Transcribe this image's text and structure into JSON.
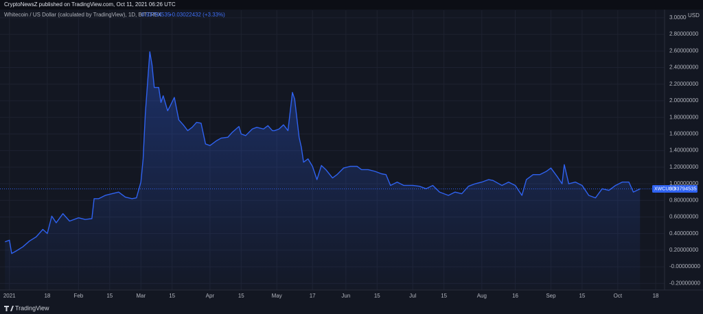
{
  "published": "CryptoNewsZ published on TradingView.com, Oct 11, 2021 06:26 UTC",
  "footer": "TradingView",
  "chart_data": {
    "type": "area",
    "title": "Whitecoin / US Dollar (calculated by TradingView), 1D, BITTREX",
    "change": "+0.03022432 (+3.33%)",
    "currency": "USD",
    "symbol": "XWCUSD",
    "x": [
      "2020-12-30",
      "2021-01-01",
      "2021-01-02",
      "2021-01-04",
      "2021-01-07",
      "2021-01-10",
      "2021-01-13",
      "2021-01-16",
      "2021-01-18",
      "2021-01-20",
      "2021-01-22",
      "2021-01-25",
      "2021-01-28",
      "2021-02-01",
      "2021-02-04",
      "2021-02-07",
      "2021-02-08",
      "2021-02-10",
      "2021-02-13",
      "2021-02-16",
      "2021-02-19",
      "2021-02-22",
      "2021-02-25",
      "2021-02-27",
      "2021-03-01",
      "2021-03-02",
      "2021-03-03",
      "2021-03-05",
      "2021-03-06",
      "2021-03-07",
      "2021-03-09",
      "2021-03-10",
      "2021-03-11",
      "2021-03-13",
      "2021-03-14",
      "2021-03-16",
      "2021-03-18",
      "2021-03-20",
      "2021-03-22",
      "2021-03-24",
      "2021-03-26",
      "2021-03-28",
      "2021-03-30",
      "2021-04-01",
      "2021-04-04",
      "2021-04-06",
      "2021-04-09",
      "2021-04-11",
      "2021-04-14",
      "2021-04-15",
      "2021-04-17",
      "2021-04-20",
      "2021-04-22",
      "2021-04-25",
      "2021-04-27",
      "2021-04-29",
      "2021-04-30",
      "2021-05-02",
      "2021-05-04",
      "2021-05-06",
      "2021-05-08",
      "2021-05-09",
      "2021-05-11",
      "2021-05-12",
      "2021-05-13",
      "2021-05-15",
      "2021-05-17",
      "2021-05-19",
      "2021-05-21",
      "2021-05-23",
      "2021-05-26",
      "2021-05-28",
      "2021-05-31",
      "2021-06-03",
      "2021-06-06",
      "2021-06-08",
      "2021-06-11",
      "2021-06-14",
      "2021-06-17",
      "2021-06-19",
      "2021-06-21",
      "2021-06-24",
      "2021-06-27",
      "2021-07-01",
      "2021-07-04",
      "2021-07-07",
      "2021-07-10",
      "2021-07-13",
      "2021-07-17",
      "2021-07-20",
      "2021-07-23",
      "2021-07-26",
      "2021-07-29",
      "2021-08-01",
      "2021-08-04",
      "2021-08-06",
      "2021-08-10",
      "2021-08-13",
      "2021-08-16",
      "2021-08-19",
      "2021-08-21",
      "2021-08-24",
      "2021-08-27",
      "2021-08-30",
      "2021-09-01",
      "2021-09-04",
      "2021-09-06",
      "2021-09-07",
      "2021-09-09",
      "2021-09-12",
      "2021-09-15",
      "2021-09-18",
      "2021-09-21",
      "2021-09-24",
      "2021-09-27",
      "2021-09-30",
      "2021-10-03",
      "2021-10-06",
      "2021-10-08",
      "2021-10-11"
    ],
    "series": [
      {
        "name": "XWCUSD",
        "color": "#2f62f0",
        "values": [
          0.3,
          0.32,
          0.16,
          0.19,
          0.24,
          0.31,
          0.36,
          0.45,
          0.4,
          0.61,
          0.53,
          0.64,
          0.55,
          0.59,
          0.57,
          0.58,
          0.82,
          0.82,
          0.86,
          0.88,
          0.9,
          0.84,
          0.82,
          0.83,
          1.02,
          1.3,
          1.85,
          2.59,
          2.43,
          2.16,
          2.16,
          1.98,
          2.06,
          1.88,
          1.93,
          2.04,
          1.77,
          1.71,
          1.64,
          1.68,
          1.74,
          1.73,
          1.48,
          1.46,
          1.52,
          1.55,
          1.56,
          1.62,
          1.69,
          1.6,
          1.58,
          1.66,
          1.68,
          1.66,
          1.7,
          1.64,
          1.64,
          1.66,
          1.71,
          1.64,
          2.1,
          2.02,
          1.56,
          1.44,
          1.26,
          1.3,
          1.21,
          1.05,
          1.22,
          1.17,
          1.07,
          1.11,
          1.19,
          1.21,
          1.21,
          1.17,
          1.17,
          1.15,
          1.12,
          1.11,
          0.98,
          1.02,
          0.98,
          0.98,
          0.97,
          0.94,
          0.98,
          0.9,
          0.86,
          0.9,
          0.88,
          0.97,
          1.0,
          1.02,
          1.05,
          1.04,
          0.98,
          1.02,
          0.98,
          0.86,
          1.05,
          1.11,
          1.11,
          1.15,
          1.19,
          1.08,
          1.0,
          1.23,
          1.0,
          1.02,
          0.98,
          0.86,
          0.83,
          0.94,
          0.92,
          0.98,
          1.02,
          1.02,
          0.9,
          0.93794535
        ]
      }
    ],
    "xlim": [
      "2020-12-29",
      "2021-10-22"
    ],
    "xticks": [
      {
        "value": "2021-01-01",
        "label": "2021"
      },
      {
        "value": "2021-01-18",
        "label": "18"
      },
      {
        "value": "2021-02-01",
        "label": "Feb"
      },
      {
        "value": "2021-02-15",
        "label": "15"
      },
      {
        "value": "2021-03-01",
        "label": "Mar"
      },
      {
        "value": "2021-03-15",
        "label": "15"
      },
      {
        "value": "2021-04-01",
        "label": "Apr"
      },
      {
        "value": "2021-04-15",
        "label": "15"
      },
      {
        "value": "2021-05-01",
        "label": "May"
      },
      {
        "value": "2021-05-17",
        "label": "17"
      },
      {
        "value": "2021-06-01",
        "label": "Jun"
      },
      {
        "value": "2021-06-15",
        "label": "15"
      },
      {
        "value": "2021-07-01",
        "label": "Jul"
      },
      {
        "value": "2021-07-15",
        "label": "15"
      },
      {
        "value": "2021-08-01",
        "label": "Aug"
      },
      {
        "value": "2021-08-16",
        "label": "16"
      },
      {
        "value": "2021-09-01",
        "label": "Sep"
      },
      {
        "value": "2021-09-15",
        "label": "15"
      },
      {
        "value": "2021-10-01",
        "label": "Oct"
      },
      {
        "value": "2021-10-18",
        "label": "18"
      }
    ],
    "ylim": [
      -0.28,
      3.09
    ],
    "yticks": [
      {
        "value": -0.2,
        "label": "-0.20000000"
      },
      {
        "value": 0,
        "label": "-0.00000000"
      },
      {
        "value": 0.2,
        "label": "0.20000000"
      },
      {
        "value": 0.4,
        "label": "0.40000000"
      },
      {
        "value": 0.6,
        "label": "0.60000000"
      },
      {
        "value": 0.8,
        "label": "0.80000000"
      },
      {
        "value": 1.0,
        "label": "1.00000000"
      },
      {
        "value": 1.2,
        "label": "1.20000000"
      },
      {
        "value": 1.4,
        "label": "1.40000000"
      },
      {
        "value": 1.6,
        "label": "1.60000000"
      },
      {
        "value": 1.8,
        "label": "1.80000000"
      },
      {
        "value": 2.0,
        "label": "2.00000000"
      },
      {
        "value": 2.2,
        "label": "2.20000000"
      },
      {
        "value": 2.4,
        "label": "2.40000000"
      },
      {
        "value": 2.6,
        "label": "2.60000000"
      },
      {
        "value": 2.8,
        "label": "2.80000000"
      },
      {
        "value": 3.0,
        "label": "3.00000000"
      }
    ],
    "grid": true
  }
}
